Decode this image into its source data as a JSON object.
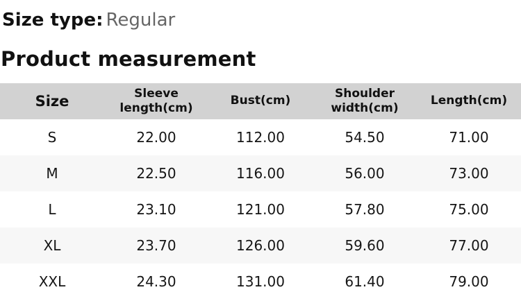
{
  "header": {
    "size_type_label": "Size type:",
    "size_type_value": "Regular",
    "section_title": "Product measurement"
  },
  "table": {
    "columns": [
      {
        "label": "Size"
      },
      {
        "label": "Sleeve length(cm)"
      },
      {
        "label": "Bust(cm)"
      },
      {
        "label": "Shoulder width(cm)"
      },
      {
        "label": "Length(cm)"
      }
    ],
    "rows": [
      {
        "cells": [
          "S",
          "22.00",
          "112.00",
          "54.50",
          "71.00"
        ]
      },
      {
        "cells": [
          "M",
          "22.50",
          "116.00",
          "56.00",
          "73.00"
        ]
      },
      {
        "cells": [
          "L",
          "23.10",
          "121.00",
          "57.80",
          "75.00"
        ]
      },
      {
        "cells": [
          "XL",
          "23.70",
          "126.00",
          "59.60",
          "77.00"
        ]
      },
      {
        "cells": [
          "XXL",
          "24.30",
          "131.00",
          "61.40",
          "79.00"
        ]
      }
    ]
  },
  "colors": {
    "header_row_bg": "#d2d2d2",
    "row_alt_bg": "#f7f7f7",
    "text": "#111111",
    "muted_text": "#666666"
  }
}
